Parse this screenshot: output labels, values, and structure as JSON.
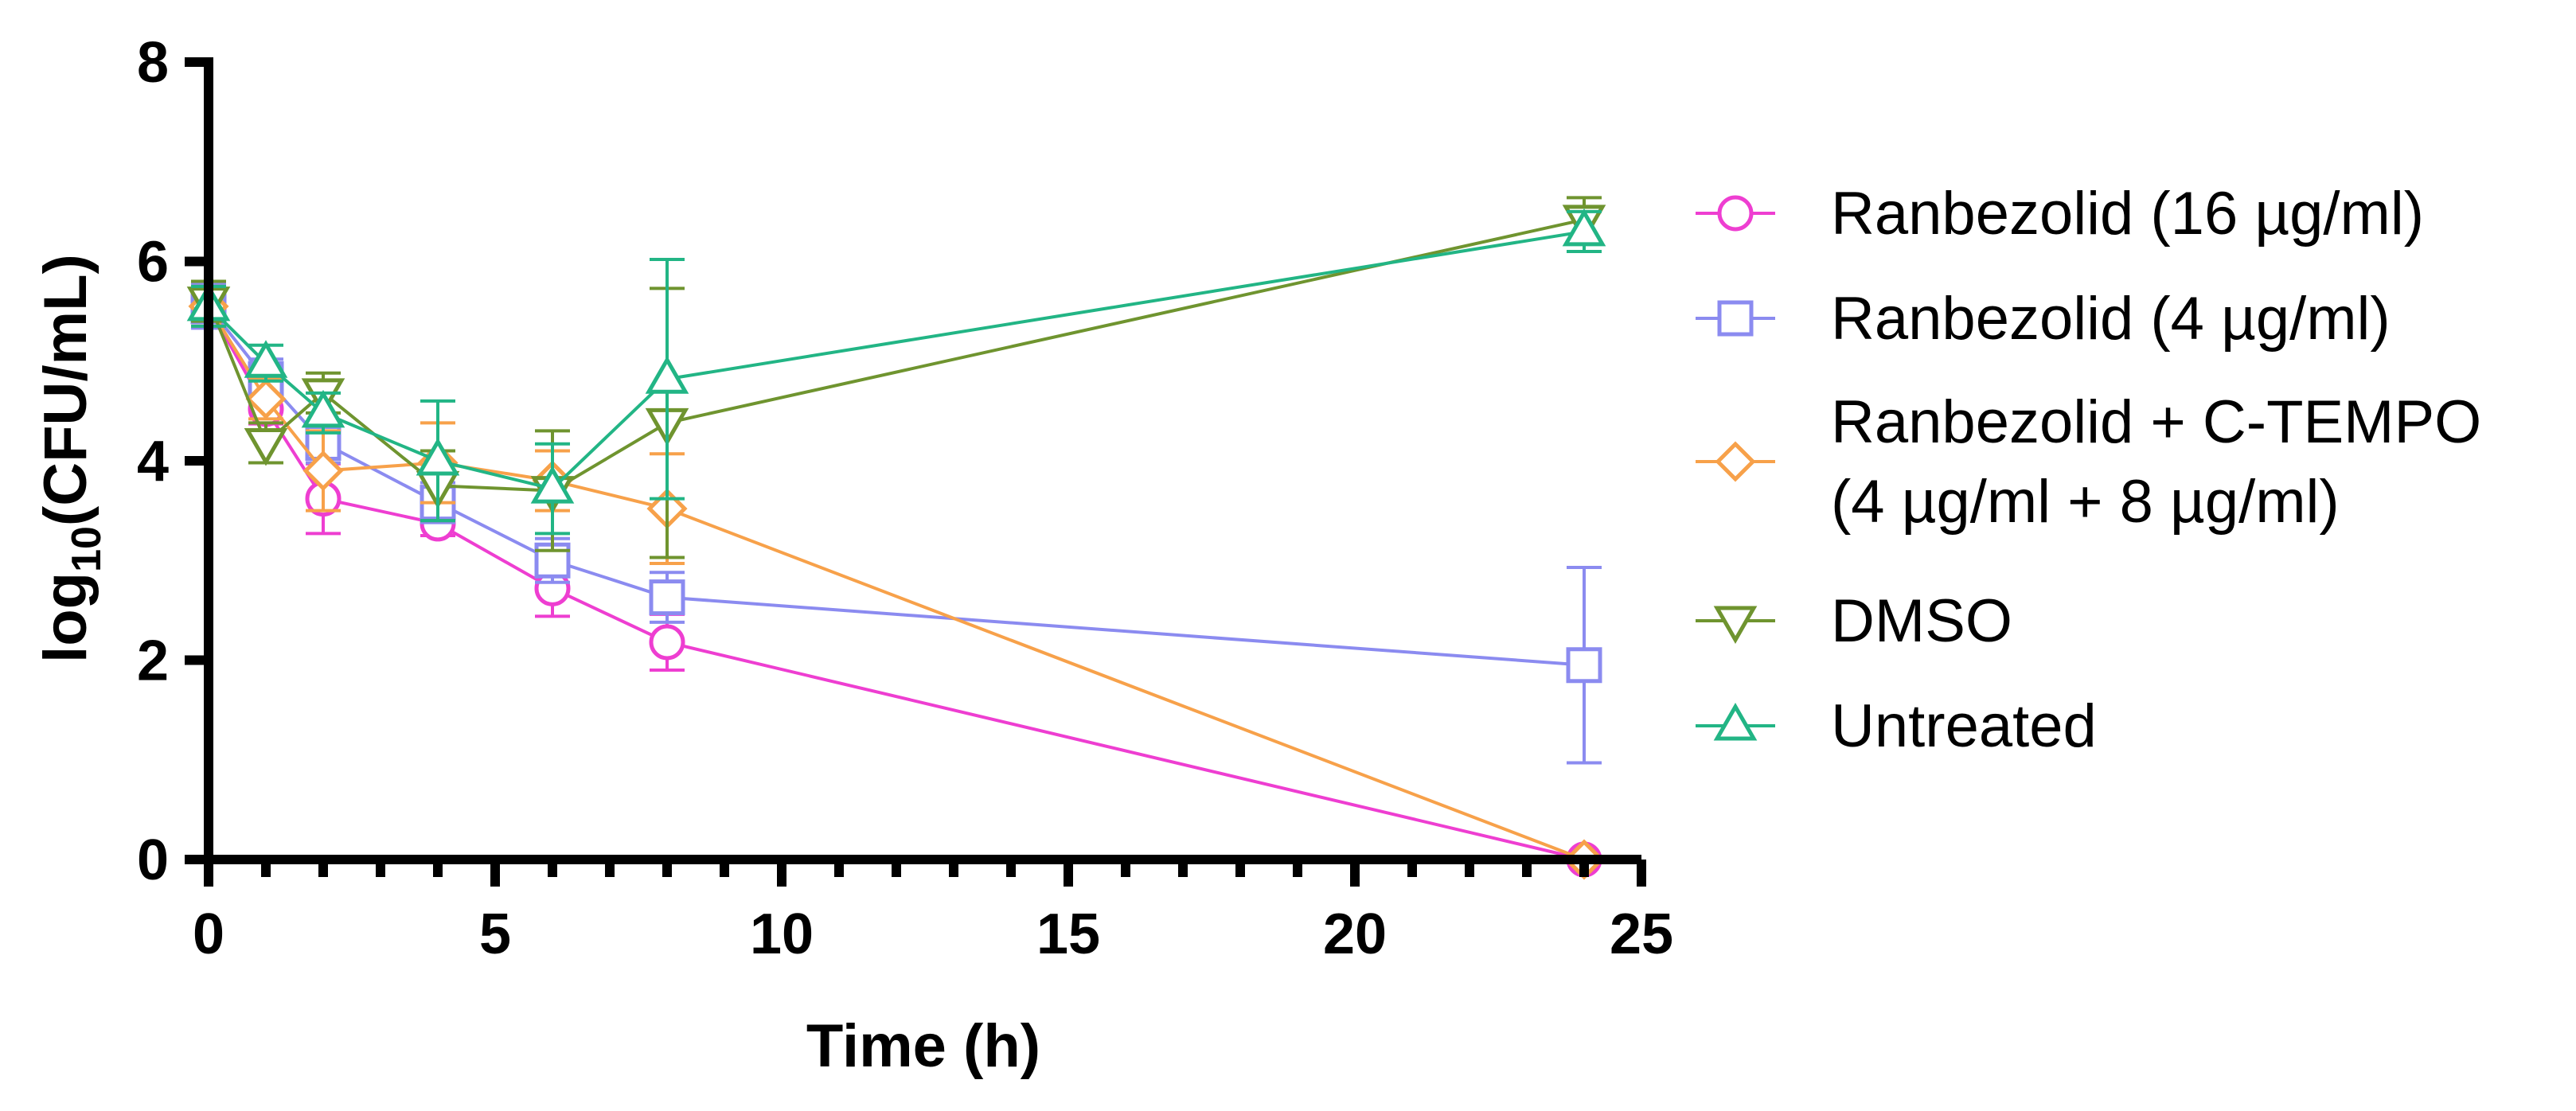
{
  "chart_data": {
    "type": "line",
    "title": "",
    "xlabel": "Time (h)",
    "ylabel_main": "log",
    "ylabel_sub": "10",
    "ylabel_rest": "(CFU/mL)",
    "xlim": [
      0,
      25
    ],
    "ylim": [
      0,
      8
    ],
    "x_ticks": [
      "0",
      "5",
      "10",
      "15",
      "20",
      "25"
    ],
    "y_ticks": [
      "0",
      "2",
      "4",
      "6",
      "8"
    ],
    "legend_position": "right",
    "series": [
      {
        "name": "Ranbezolid (16 µg/ml)",
        "legend_lines": [
          "Ranbezolid (16 µg/ml)"
        ],
        "color": "#ee3ed1",
        "marker": "circle",
        "x": [
          0,
          1,
          2,
          4,
          6,
          8,
          24
        ],
        "y": [
          5.55,
          4.52,
          3.62,
          3.37,
          2.72,
          2.18,
          0
        ],
        "err": [
          0.2,
          0.15,
          0.35,
          0.12,
          0.28,
          0.28,
          0
        ]
      },
      {
        "name": "Ranbezolid (4 µg/ml)",
        "legend_lines": [
          "Ranbezolid (4 µg/ml)"
        ],
        "color": "#8b8bf0",
        "marker": "square",
        "x": [
          0,
          1,
          2,
          4,
          6,
          8,
          24
        ],
        "y": [
          5.55,
          4.82,
          4.18,
          3.58,
          3.0,
          2.63,
          1.95
        ],
        "err": [
          0.22,
          0.2,
          0.2,
          0.2,
          0.22,
          0.25,
          0.98
        ]
      },
      {
        "name": "Ranbezolid + C-TEMPO (4 µg/ml + 8 µg/ml)",
        "legend_lines": [
          "Ranbezolid + C-TEMPO",
          "(4 µg/ml + 8 µg/ml)"
        ],
        "color": "#f7a14a",
        "marker": "diamond",
        "x": [
          0,
          1,
          2,
          4,
          6,
          8,
          24
        ],
        "y": [
          5.55,
          4.62,
          3.9,
          3.98,
          3.8,
          3.52,
          0
        ],
        "err": [
          0.2,
          0.2,
          0.4,
          0.4,
          0.3,
          0.55,
          0
        ]
      },
      {
        "name": "DMSO",
        "legend_lines": [
          "DMSO"
        ],
        "color": "#6f942f",
        "marker": "triangle-down",
        "x": [
          0,
          1,
          2,
          4,
          6,
          8,
          24
        ],
        "y": [
          5.6,
          4.18,
          4.68,
          3.75,
          3.7,
          4.38,
          6.42
        ],
        "err": [
          0.2,
          0.2,
          0.2,
          0.35,
          0.6,
          1.35,
          0.22
        ]
      },
      {
        "name": "Untreated",
        "legend_lines": [
          "Untreated"
        ],
        "color": "#22b585",
        "marker": "triangle-up",
        "x": [
          0,
          1,
          2,
          4,
          6,
          8,
          24
        ],
        "y": [
          5.55,
          4.98,
          4.48,
          4.0,
          3.72,
          4.82,
          6.3
        ],
        "err": [
          0.2,
          0.18,
          0.2,
          0.6,
          0.45,
          1.2,
          0.2
        ]
      }
    ]
  }
}
